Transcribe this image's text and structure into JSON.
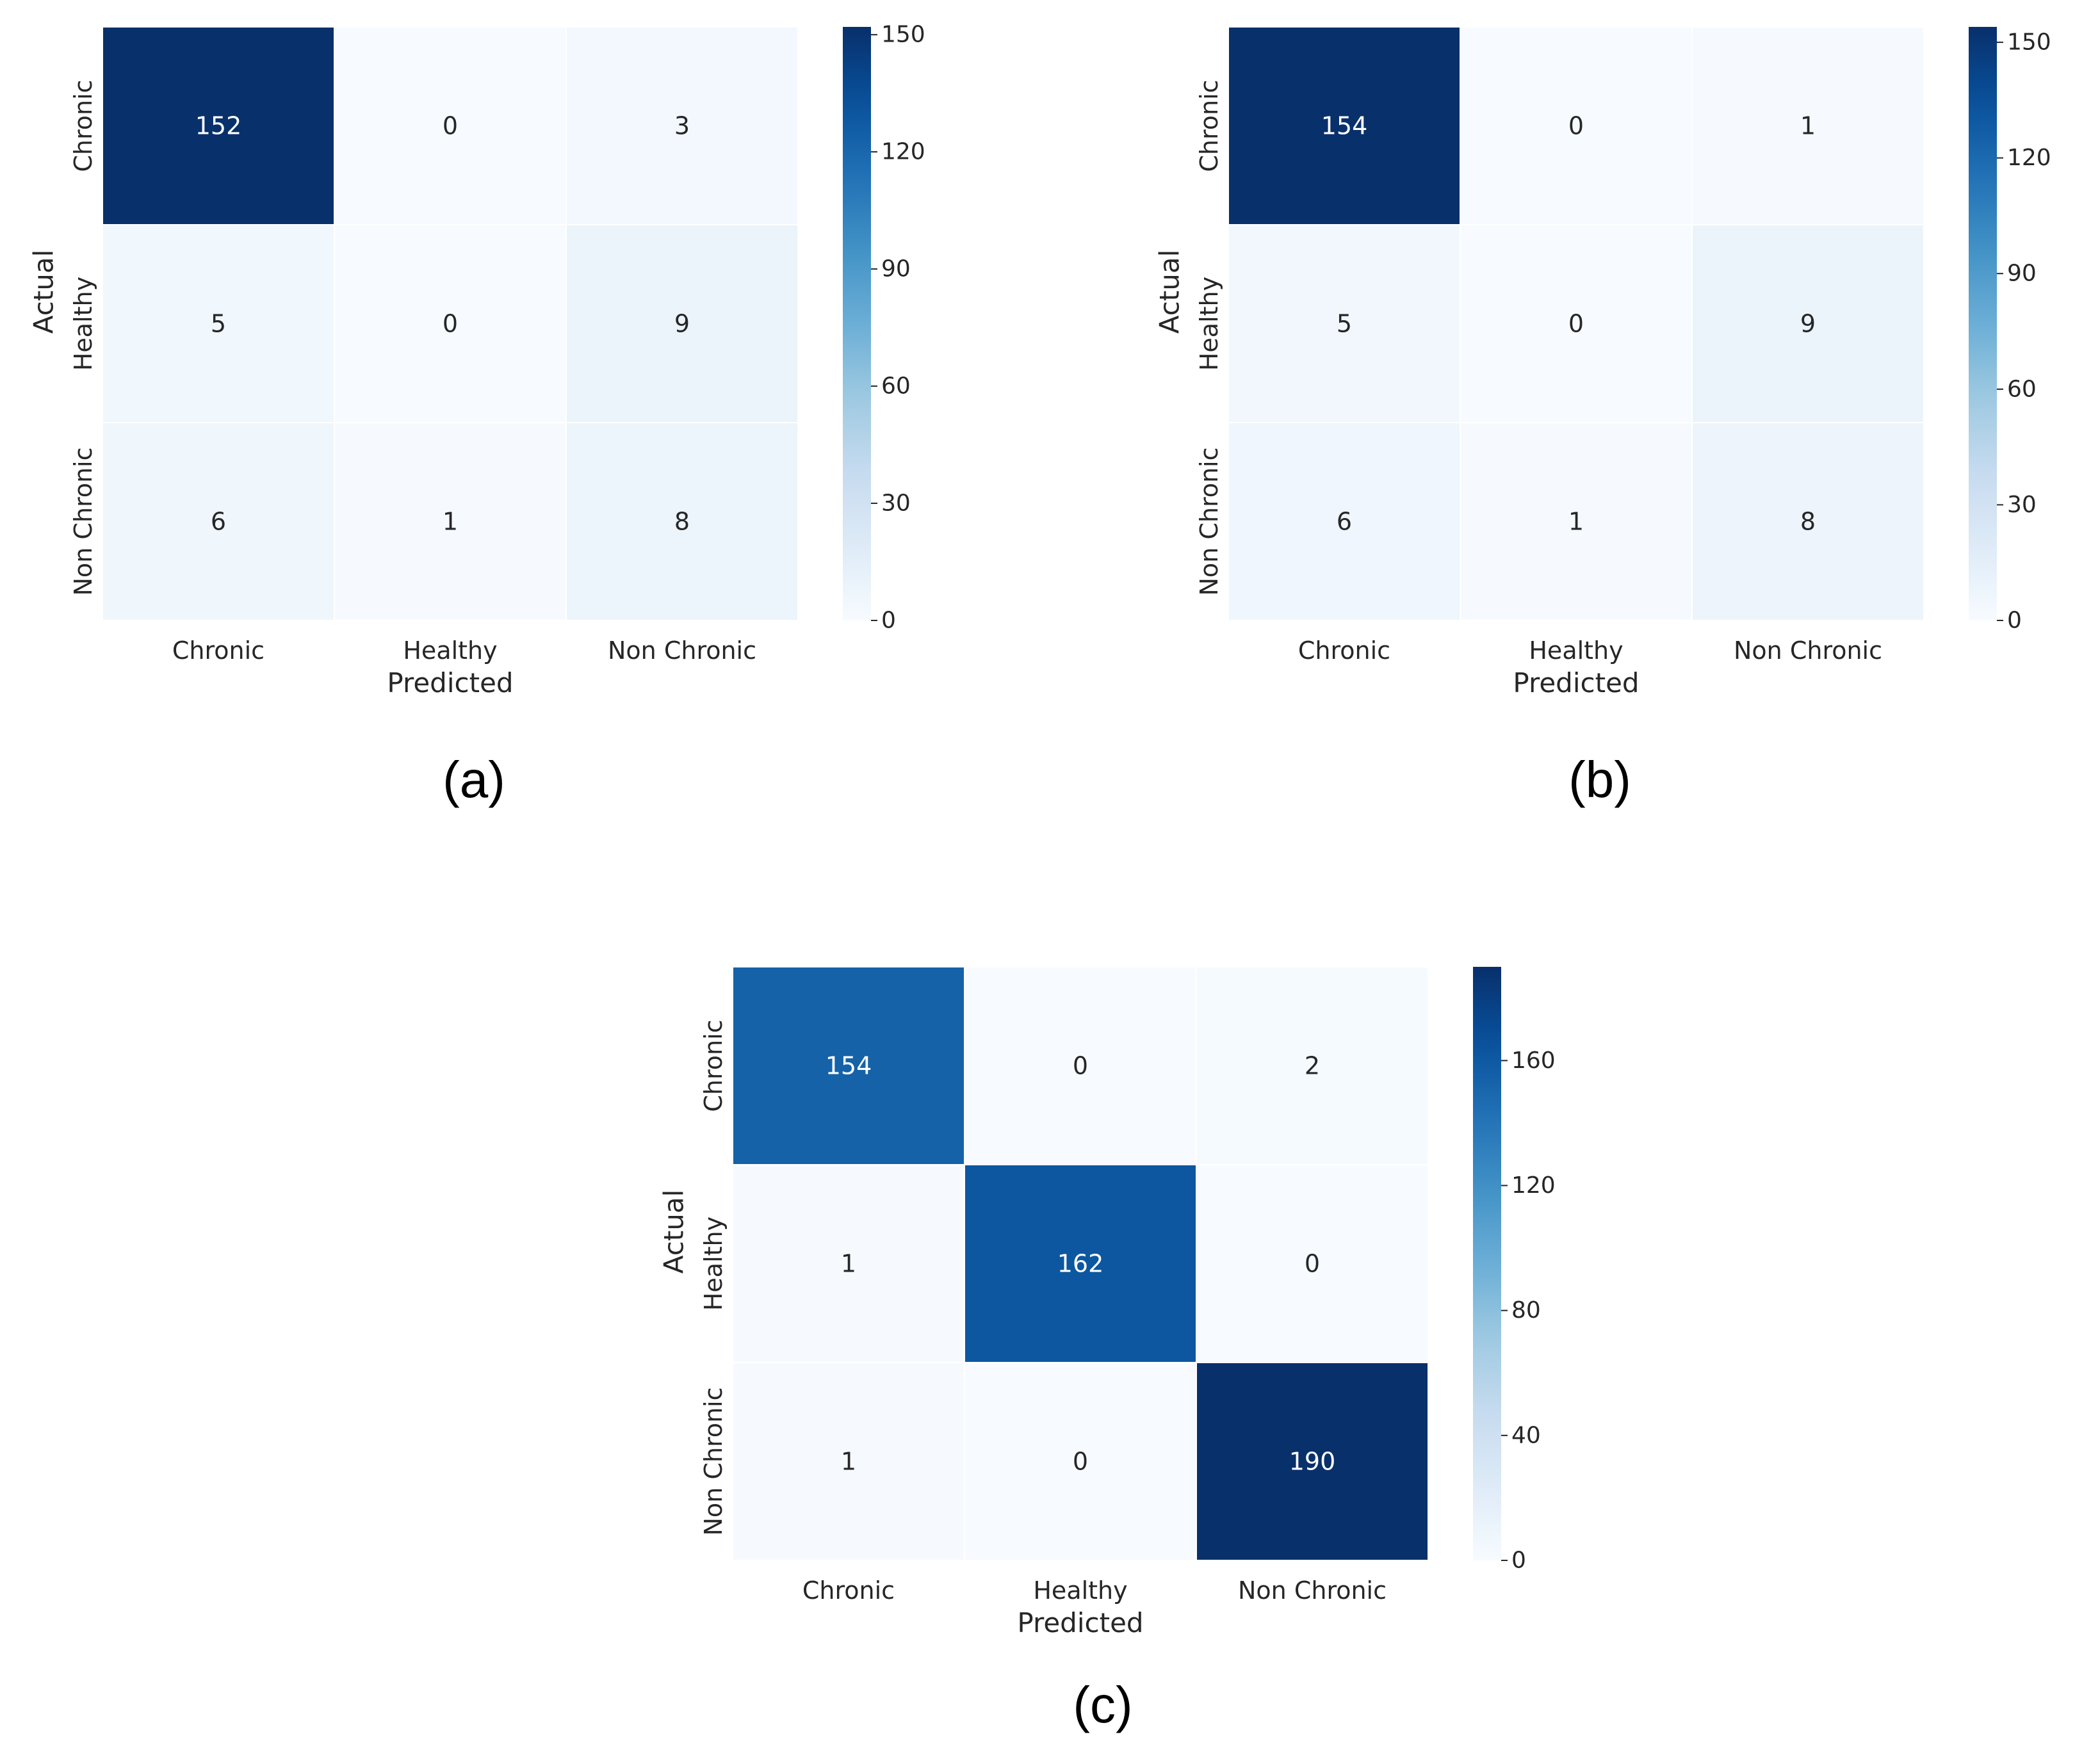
{
  "chart_data": [
    {
      "type": "heatmap",
      "panel_label": "(a)",
      "xlabel": "Predicted",
      "ylabel": "Actual",
      "x_categories": [
        "Chronic",
        "Healthy",
        "Non Chronic"
      ],
      "y_categories": [
        "Chronic",
        "Healthy",
        "Non Chronic"
      ],
      "values": [
        [
          152,
          0,
          3
        ],
        [
          5,
          0,
          9
        ],
        [
          6,
          1,
          8
        ]
      ],
      "colorbar": {
        "min": 0,
        "max": 152,
        "ticks": [
          0,
          30,
          60,
          90,
          120,
          150
        ]
      },
      "colormap": "Blues"
    },
    {
      "type": "heatmap",
      "panel_label": "(b)",
      "xlabel": "Predicted",
      "ylabel": "Actual",
      "x_categories": [
        "Chronic",
        "Healthy",
        "Non Chronic"
      ],
      "y_categories": [
        "Chronic",
        "Healthy",
        "Non Chronic"
      ],
      "values": [
        [
          154,
          0,
          1
        ],
        [
          5,
          0,
          9
        ],
        [
          6,
          1,
          8
        ]
      ],
      "colorbar": {
        "min": 0,
        "max": 154,
        "ticks": [
          0,
          30,
          60,
          90,
          120,
          150
        ]
      },
      "colormap": "Blues"
    },
    {
      "type": "heatmap",
      "panel_label": "(c)",
      "xlabel": "Predicted",
      "ylabel": "Actual",
      "x_categories": [
        "Chronic",
        "Healthy",
        "Non Chronic"
      ],
      "y_categories": [
        "Chronic",
        "Healthy",
        "Non Chronic"
      ],
      "values": [
        [
          154,
          0,
          2
        ],
        [
          1,
          162,
          0
        ],
        [
          1,
          0,
          190
        ]
      ],
      "colorbar": {
        "min": 0,
        "max": 190,
        "ticks": [
          0,
          40,
          80,
          120,
          160
        ]
      },
      "colormap": "Blues"
    }
  ]
}
